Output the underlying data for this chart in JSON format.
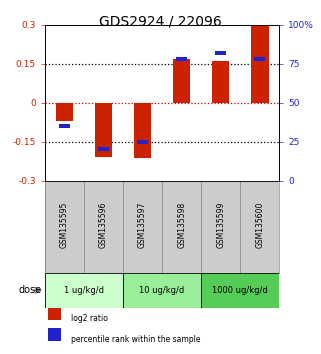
{
  "title": "GDS2924 / 22096",
  "samples": [
    "GSM135595",
    "GSM135596",
    "GSM135597",
    "GSM135598",
    "GSM135599",
    "GSM135600"
  ],
  "log2_ratio": [
    -0.07,
    -0.21,
    -0.215,
    0.17,
    0.16,
    0.3
  ],
  "percentile_rank": [
    35,
    20,
    25,
    78,
    82,
    78
  ],
  "bar_color": "#cc2200",
  "dot_color": "#2222cc",
  "ylim_left": [
    -0.3,
    0.3
  ],
  "ylim_right": [
    0,
    100
  ],
  "yticks_left": [
    -0.3,
    -0.15,
    0,
    0.15,
    0.3
  ],
  "ytick_labels_left": [
    "-0.3",
    "-0.15",
    "0",
    "0.15",
    "0.3"
  ],
  "yticks_right": [
    0,
    25,
    50,
    75,
    100
  ],
  "ytick_labels_right": [
    "0",
    "25",
    "50",
    "75",
    "100%"
  ],
  "hlines": [
    0.15,
    0.0,
    -0.15
  ],
  "hline_colors": [
    "black",
    "#cc0000",
    "black"
  ],
  "dose_groups": [
    {
      "label": "1 ug/kg/d",
      "cols": [
        0,
        1
      ],
      "color": "#ccffcc"
    },
    {
      "label": "10 ug/kg/d",
      "cols": [
        2,
        3
      ],
      "color": "#99ee99"
    },
    {
      "label": "1000 ug/kg/d",
      "cols": [
        4,
        5
      ],
      "color": "#55cc55"
    }
  ],
  "dose_label": "dose",
  "legend_items": [
    {
      "label": "log2 ratio",
      "color": "#cc2200"
    },
    {
      "label": "percentile rank within the sample",
      "color": "#2222cc"
    }
  ],
  "bar_width": 0.45,
  "background_color": "#ffffff",
  "title_fontsize": 10
}
